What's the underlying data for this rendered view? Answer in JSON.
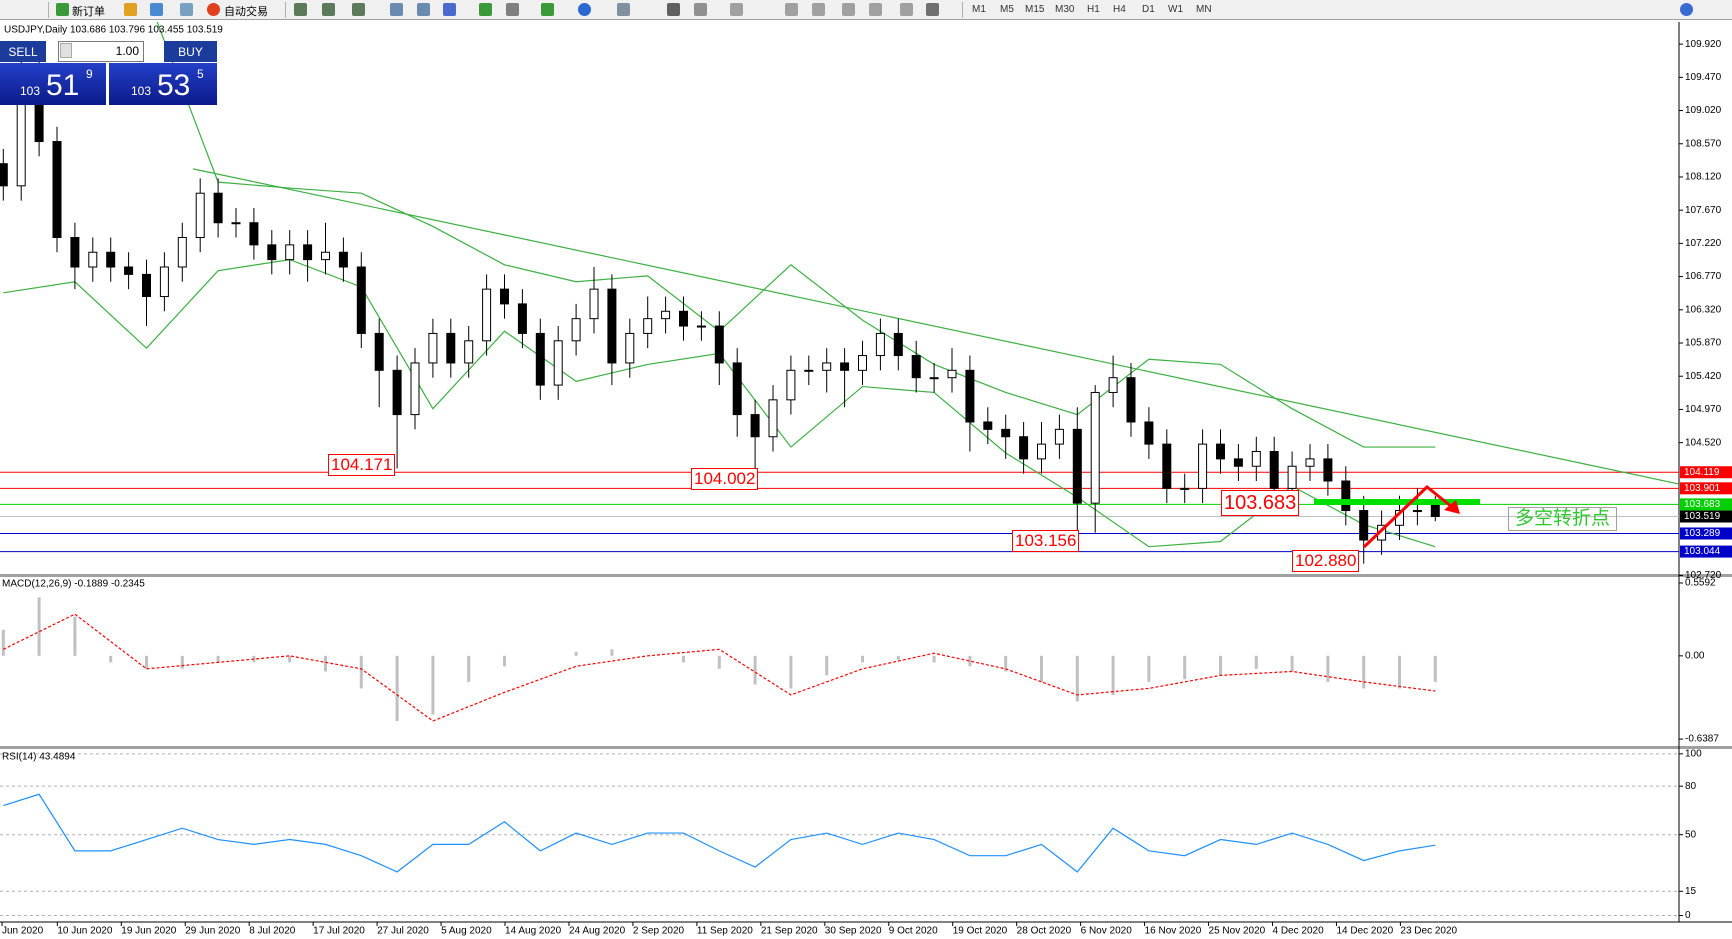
{
  "toolbar": {
    "new_order": "新订单",
    "auto_trading": "自动交易",
    "timeframes": [
      "M1",
      "M5",
      "M15",
      "M30",
      "H1",
      "H4",
      "D1",
      "W1",
      "MN"
    ]
  },
  "trade_panel": {
    "sell": "SELL",
    "buy": "BUY",
    "lots": "1.00",
    "bid": {
      "big": "103",
      "mid": "51",
      "small": "9"
    },
    "ask": {
      "big": "103",
      "mid": "53",
      "small": "5"
    }
  },
  "main": {
    "header": "USDJPY,Daily  103.686 103.796 103.455 103.519",
    "ylim": [
      102.74,
      110.22
    ],
    "yticks": [
      {
        "value": 109.92,
        "label": "109.920"
      },
      {
        "value": 109.47,
        "label": "109.470"
      },
      {
        "value": 109.02,
        "label": "109.020"
      },
      {
        "value": 108.57,
        "label": "108.570"
      },
      {
        "value": 108.12,
        "label": "108.120"
      },
      {
        "value": 107.67,
        "label": "107.670"
      },
      {
        "value": 107.22,
        "label": "107.220"
      },
      {
        "value": 106.77,
        "label": "106.770"
      },
      {
        "value": 106.32,
        "label": "106.320"
      },
      {
        "value": 105.87,
        "label": "105.870"
      },
      {
        "value": 105.42,
        "label": "105.420"
      },
      {
        "value": 104.97,
        "label": "104.970"
      },
      {
        "value": 104.52,
        "label": "104.520"
      },
      {
        "value": 102.72,
        "label": "102.720"
      }
    ],
    "candles": {
      "open": [
        108.3,
        108.0,
        109.5,
        108.6,
        107.3,
        106.9,
        107.1,
        106.9,
        106.8,
        106.5,
        106.9,
        107.3,
        107.9,
        107.5,
        107.5,
        107.2,
        107.0,
        107.2,
        107.0,
        107.1,
        106.9,
        106.0,
        105.5,
        104.9,
        105.6,
        106.0,
        105.6,
        105.9,
        106.6,
        106.4,
        106.0,
        105.3,
        105.9,
        106.2,
        106.6,
        105.6,
        106.0,
        106.2,
        106.3,
        106.1,
        106.1,
        105.6,
        104.9,
        104.6,
        105.1,
        105.5,
        105.5,
        105.6,
        105.5,
        105.7,
        106.0,
        105.7,
        105.4,
        105.4,
        105.5,
        104.8,
        104.7,
        104.6,
        104.3,
        104.5,
        104.7,
        103.7,
        105.2,
        105.4,
        104.8,
        104.5,
        103.9,
        103.9,
        104.5,
        104.3,
        104.2,
        104.4,
        103.9,
        104.2,
        104.3,
        104.0,
        103.6,
        103.2,
        103.4,
        103.6,
        103.686
      ],
      "high": [
        108.5,
        109.7,
        109.7,
        108.8,
        107.5,
        107.3,
        107.3,
        107.1,
        107.0,
        107.1,
        107.5,
        108.1,
        108.1,
        107.7,
        107.7,
        107.4,
        107.4,
        107.4,
        107.5,
        107.3,
        107.1,
        106.2,
        105.7,
        105.8,
        106.2,
        106.2,
        106.1,
        106.8,
        106.8,
        106.6,
        106.2,
        106.1,
        106.4,
        106.9,
        106.8,
        106.2,
        106.5,
        106.5,
        106.5,
        106.3,
        106.3,
        105.8,
        105.1,
        105.3,
        105.7,
        105.7,
        105.8,
        105.8,
        105.9,
        106.2,
        106.2,
        105.9,
        105.6,
        105.8,
        105.7,
        105.0,
        104.9,
        104.8,
        104.8,
        104.9,
        105.0,
        105.3,
        105.7,
        105.6,
        105.0,
        104.7,
        104.1,
        104.7,
        104.7,
        104.5,
        104.6,
        104.6,
        104.4,
        104.5,
        104.5,
        104.2,
        103.8,
        103.6,
        103.8,
        103.9,
        103.796
      ],
      "low": [
        107.8,
        107.8,
        108.4,
        107.1,
        106.6,
        106.7,
        106.7,
        106.6,
        106.1,
        106.3,
        106.7,
        107.1,
        107.3,
        107.3,
        107.0,
        106.8,
        106.8,
        106.7,
        106.8,
        106.7,
        105.8,
        105.0,
        104.171,
        104.7,
        105.4,
        105.4,
        105.4,
        105.7,
        106.2,
        105.8,
        105.1,
        105.1,
        105.7,
        106.0,
        105.3,
        105.4,
        105.8,
        106.0,
        105.9,
        105.9,
        105.3,
        104.6,
        104.002,
        104.4,
        104.9,
        105.3,
        105.2,
        105.0,
        105.3,
        105.5,
        105.5,
        105.2,
        105.2,
        105.2,
        104.4,
        104.5,
        104.3,
        104.1,
        104.1,
        104.3,
        103.156,
        103.3,
        105.0,
        104.6,
        104.3,
        103.7,
        103.7,
        103.7,
        104.1,
        104.0,
        104.0,
        103.7,
        103.7,
        104.0,
        103.8,
        103.4,
        102.88,
        103.0,
        103.2,
        103.4,
        103.455
      ],
      "close": [
        108.0,
        109.5,
        108.6,
        107.3,
        106.9,
        107.1,
        106.9,
        106.8,
        106.5,
        106.9,
        107.3,
        107.9,
        107.5,
        107.5,
        107.2,
        107.0,
        107.2,
        107.0,
        107.1,
        106.9,
        106.0,
        105.5,
        104.9,
        105.6,
        106.0,
        105.6,
        105.9,
        106.6,
        106.4,
        106.0,
        105.3,
        105.9,
        106.2,
        106.6,
        105.6,
        106.0,
        106.2,
        106.3,
        106.1,
        106.1,
        105.6,
        104.9,
        104.6,
        105.1,
        105.5,
        105.5,
        105.6,
        105.5,
        105.7,
        106.0,
        105.7,
        105.4,
        105.4,
        105.5,
        104.8,
        104.7,
        104.6,
        104.3,
        104.5,
        104.7,
        103.7,
        105.2,
        105.4,
        104.8,
        104.5,
        103.9,
        103.9,
        104.5,
        104.3,
        104.2,
        104.4,
        103.9,
        104.2,
        104.3,
        104.0,
        103.6,
        103.2,
        103.4,
        103.6,
        103.6,
        103.519
      ]
    },
    "bands": {
      "color": "#3cb043",
      "upper": [
        111.0,
        111.0,
        110.6,
        108.05,
        107.97,
        107.9,
        107.45,
        106.93,
        106.7,
        106.78,
        106.03,
        106.93,
        106.18,
        105.58,
        105.2,
        104.9,
        105.65,
        105.58,
        104.98,
        104.46,
        104.46
      ],
      "lower": [
        106.55,
        106.7,
        105.8,
        106.85,
        107.0,
        106.63,
        104.98,
        106.03,
        105.35,
        105.58,
        105.73,
        104.46,
        105.28,
        105.2,
        104.38,
        103.78,
        103.11,
        103.18,
        103.93,
        103.41,
        103.11
      ]
    },
    "trendline": {
      "x": [
        10.6,
        93.6
      ],
      "y": [
        108.23,
        103.96
      ],
      "color": "#3cb043"
    },
    "levels": [
      {
        "value": 104.119,
        "color": "#ff0000"
      },
      {
        "value": 103.901,
        "color": "#ff0000"
      },
      {
        "value": 103.683,
        "color": "#00d000"
      },
      {
        "value": 103.519,
        "color": "#000000"
      },
      {
        "value": 103.289,
        "color": "#0000c8"
      },
      {
        "value": 103.044,
        "color": "#0000c8"
      }
    ],
    "annotations": [
      "104.171",
      "104.002",
      "103.156",
      "103.683",
      "102.880",
      "多空转折点"
    ]
  },
  "macd": {
    "header": "MACD(12,26,9) -0.1889 -0.2345",
    "ylim": [
      -0.692,
      0.605
    ],
    "yticks": [
      0.5592,
      {
        "value": 0,
        "label": "0.00"
      },
      -0.6387
    ],
    "histogram": [
      0.2,
      0.45,
      0.3,
      -0.05,
      -0.1,
      -0.1,
      -0.05,
      -0.05,
      -0.05,
      -0.12,
      -0.25,
      -0.5,
      -0.45,
      -0.2,
      -0.08,
      0.0,
      0.03,
      0.05,
      0.0,
      -0.05,
      -0.1,
      -0.22,
      -0.25,
      -0.15,
      -0.05,
      -0.03,
      -0.05,
      -0.08,
      -0.12,
      -0.2,
      -0.35,
      -0.3,
      -0.2,
      -0.18,
      -0.15,
      -0.1,
      -0.12,
      -0.2,
      -0.25,
      -0.25,
      -0.2
    ],
    "signal": [
      0.05,
      0.32,
      -0.1,
      -0.05,
      0.0,
      -0.1,
      -0.5,
      -0.28,
      -0.08,
      0.0,
      0.05,
      -0.3,
      -0.1,
      0.02,
      -0.1,
      -0.3,
      -0.25,
      -0.15,
      -0.12,
      -0.2,
      -0.27
    ]
  },
  "rsi": {
    "header": "RSI(14) 43.4894",
    "ylim": [
      -4,
      103
    ],
    "yticks": [
      100,
      80,
      50,
      15,
      0
    ],
    "values": [
      68,
      75,
      40,
      40,
      47,
      54,
      47,
      44,
      47,
      44,
      37,
      27,
      44,
      44,
      58,
      40,
      51,
      44,
      51,
      51,
      40,
      30,
      47,
      51,
      44,
      51,
      47,
      37,
      37,
      44,
      27,
      54,
      40,
      37,
      47,
      44,
      51,
      44,
      34,
      40,
      43.4894
    ]
  },
  "dates": [
    "Jun 2020",
    "10 Jun 2020",
    "19 Jun 2020",
    "29 Jun 2020",
    "8 Jul 2020",
    "17 Jul 2020",
    "27 Jul 2020",
    "5 Aug 2020",
    "14 Aug 2020",
    "24 Aug 2020",
    "2 Sep 2020",
    "11 Sep 2020",
    "21 Sep 2020",
    "30 Sep 2020",
    "9 Oct 2020",
    "19 Oct 2020",
    "28 Oct 2020",
    "6 Nov 2020",
    "16 Nov 2020",
    "25 Nov 2020",
    "4 Dec 2020",
    "14 Dec 2020",
    "23 Dec 2020"
  ]
}
